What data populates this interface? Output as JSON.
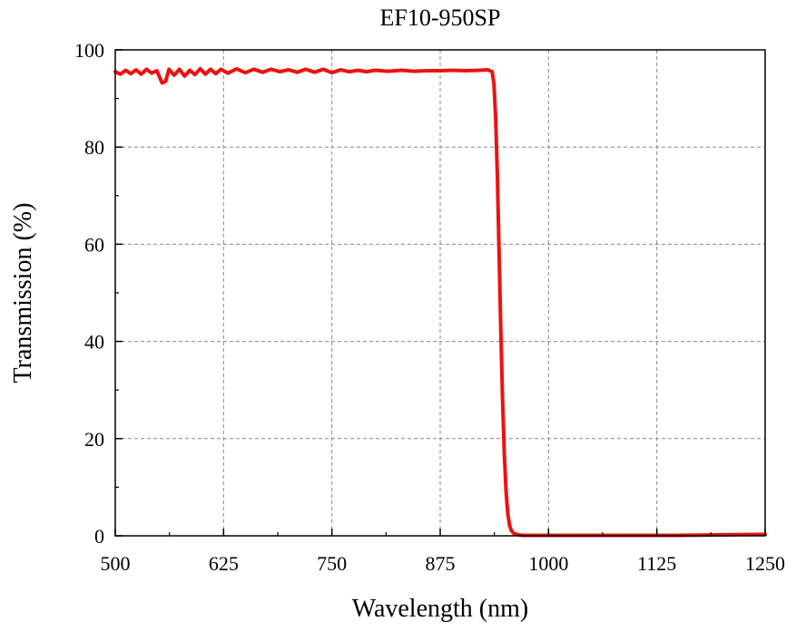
{
  "chart_data": {
    "type": "line",
    "title": "EF10-950SP",
    "xlabel": "Wavelength (nm)",
    "ylabel": "Transmission (%)",
    "xlim": [
      500,
      1250
    ],
    "ylim": [
      0,
      100
    ],
    "xticks": [
      500,
      625,
      750,
      875,
      1000,
      1125,
      1250
    ],
    "xtick_labels": [
      "500",
      "625",
      "750",
      "875",
      "1000",
      "1125",
      "1250"
    ],
    "yticks": [
      0,
      20,
      40,
      60,
      80,
      100
    ],
    "ytick_labels": [
      "0",
      "20",
      "40",
      "60",
      "80",
      "100"
    ],
    "grid": true,
    "series": [
      {
        "color": "#ee1111",
        "x": [
          500,
          506,
          512,
          518,
          524,
          530,
          536,
          542,
          548,
          554,
          558,
          562,
          568,
          574,
          580,
          586,
          592,
          598,
          604,
          610,
          616,
          622,
          630,
          640,
          650,
          660,
          670,
          680,
          690,
          700,
          710,
          720,
          730,
          740,
          750,
          760,
          770,
          780,
          790,
          800,
          815,
          830,
          845,
          860,
          875,
          890,
          905,
          920,
          930,
          935,
          937,
          939,
          941,
          943,
          945,
          947,
          949,
          951,
          953,
          955,
          957,
          960,
          965,
          970,
          980,
          1000,
          1050,
          1100,
          1150,
          1200,
          1250
        ],
        "y": [
          95.5,
          95.0,
          95.8,
          95.1,
          95.9,
          95.0,
          96.0,
          95.2,
          95.7,
          93.2,
          93.5,
          96.0,
          94.8,
          96.0,
          94.6,
          95.8,
          94.9,
          96.1,
          95.0,
          96.0,
          95.1,
          96.0,
          95.2,
          96.1,
          95.3,
          96.0,
          95.4,
          96.0,
          95.5,
          95.9,
          95.4,
          96.0,
          95.4,
          96.0,
          95.3,
          95.9,
          95.5,
          95.8,
          95.5,
          95.8,
          95.6,
          95.8,
          95.6,
          95.7,
          95.7,
          95.8,
          95.7,
          95.8,
          95.9,
          95.5,
          93.0,
          86.0,
          74.0,
          58.0,
          42.0,
          28.0,
          17.0,
          9.0,
          4.5,
          2.2,
          1.1,
          0.5,
          0.2,
          0.1,
          0.1,
          0.1,
          0.1,
          0.1,
          0.1,
          0.2,
          0.3
        ]
      }
    ]
  }
}
